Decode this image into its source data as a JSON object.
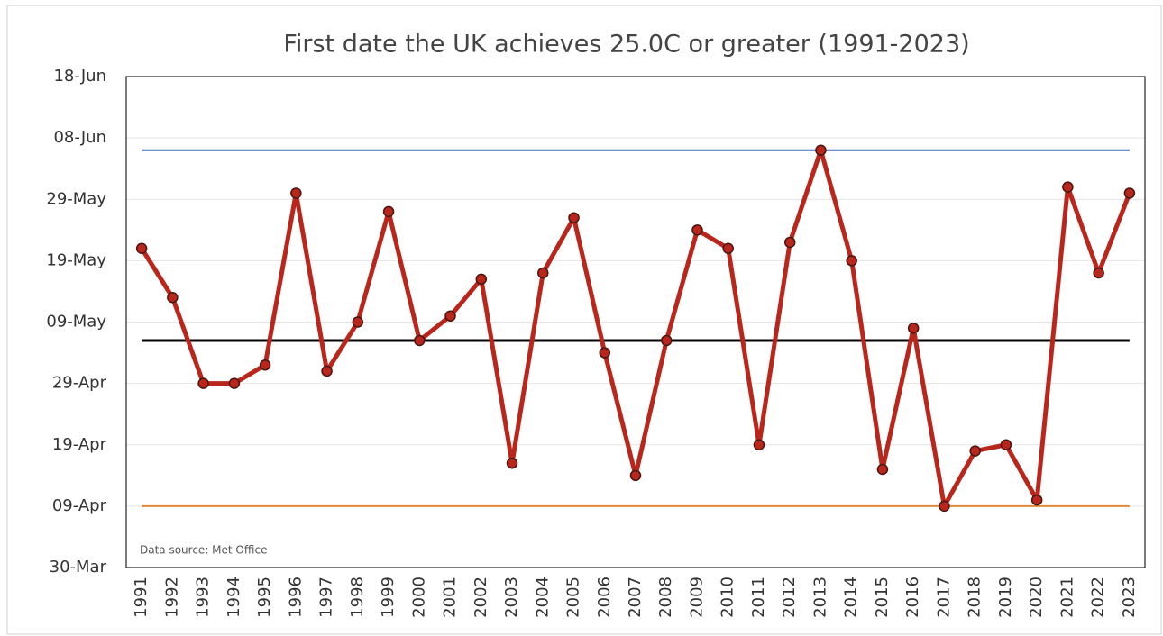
{
  "chart_data": {
    "type": "line",
    "title": "First date the UK achieves 25.0C or greater (1991-2023)",
    "annotation": "Data source: Met Office",
    "categories": [
      "1991",
      "1992",
      "1993",
      "1994",
      "1995",
      "1996",
      "1997",
      "1998",
      "1999",
      "2000",
      "2001",
      "2002",
      "2003",
      "2004",
      "2005",
      "2006",
      "2007",
      "2008",
      "2009",
      "2010",
      "2011",
      "2012",
      "2013",
      "2014",
      "2015",
      "2016",
      "2017",
      "2018",
      "2019",
      "2020",
      "2021",
      "2022",
      "2023"
    ],
    "series": [
      {
        "color": "#b8261c",
        "values": [
          141,
          133,
          119,
          119,
          122,
          150,
          121,
          129,
          147,
          126,
          130,
          136,
          106,
          137,
          146,
          124,
          104,
          126,
          144,
          141,
          109,
          142,
          157,
          139,
          105,
          128,
          99,
          108,
          109,
          100,
          151,
          137,
          150
        ]
      }
    ],
    "reference_lines": [
      {
        "color": "#4a6fb5",
        "value": 157
      },
      {
        "color": "#000000",
        "value": 126
      },
      {
        "color": "#e0893a",
        "value": 99
      }
    ],
    "ylim": [
      89,
      169
    ],
    "yticks": [
      {
        "value": 89,
        "label": "30-Mar"
      },
      {
        "value": 99,
        "label": "09-Apr"
      },
      {
        "value": 109,
        "label": "19-Apr"
      },
      {
        "value": 119,
        "label": "29-Apr"
      },
      {
        "value": 129,
        "label": "09-May"
      },
      {
        "value": 139,
        "label": "19-May"
      },
      {
        "value": 149,
        "label": "29-May"
      },
      {
        "value": 159,
        "label": "08-Jun"
      },
      {
        "value": 169,
        "label": "18-Jun"
      }
    ],
    "grid": true
  }
}
